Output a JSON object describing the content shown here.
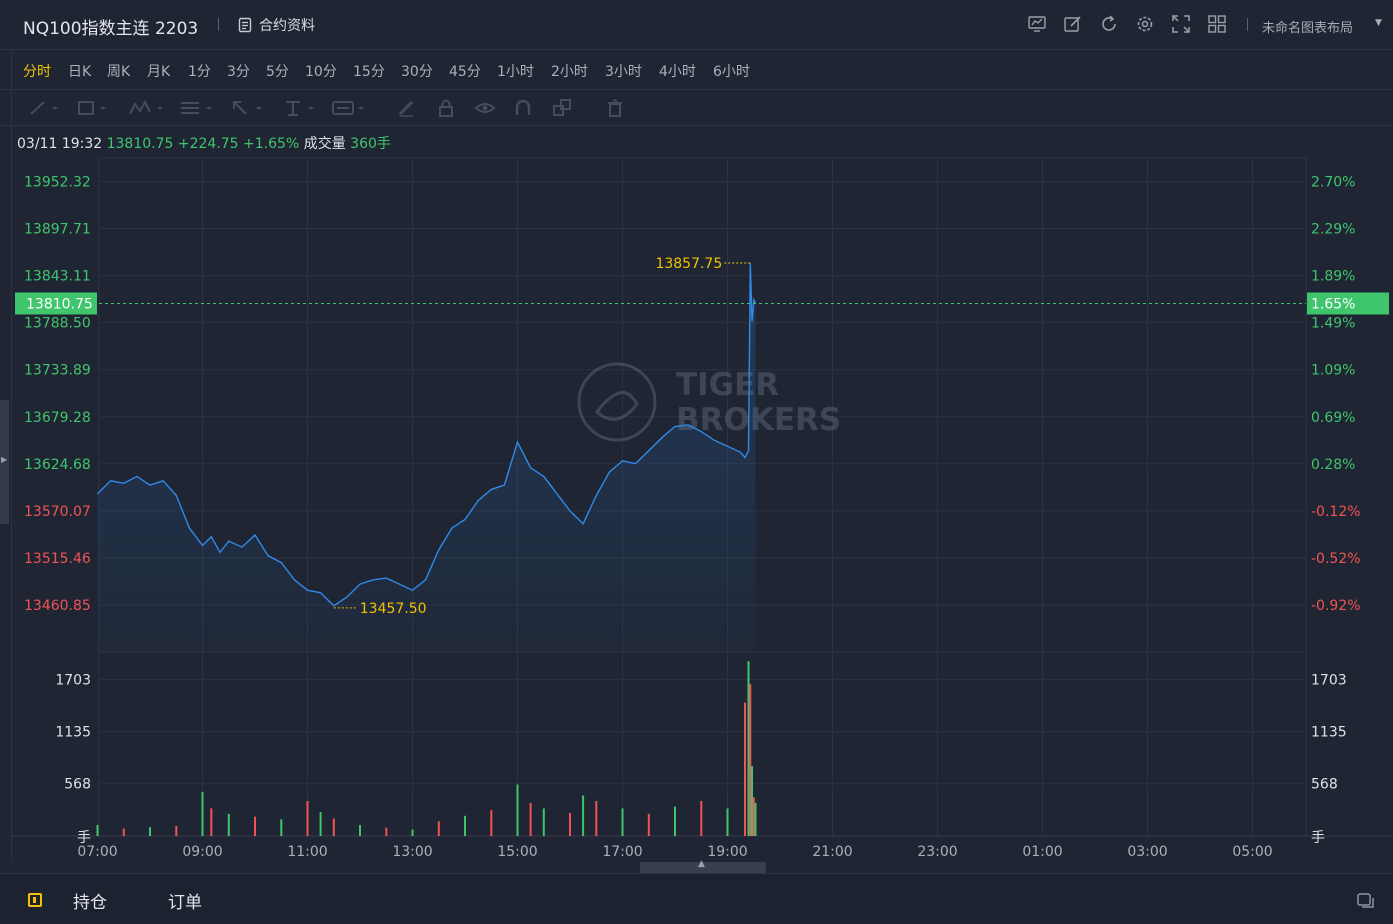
{
  "header": {
    "symbol_title": "NQ100指数主连 2203",
    "contract_info_label": "合约资料",
    "layout_name": "未命名图表布局",
    "tool_icons": [
      "indicator-icon",
      "draw-icon",
      "refresh-icon",
      "settings-icon",
      "fullscreen-icon",
      "layout-grid-icon"
    ]
  },
  "timeframes": [
    "分时",
    "日K",
    "周K",
    "月K",
    "1分",
    "3分",
    "5分",
    "10分",
    "15分",
    "30分",
    "45分",
    "1小时",
    "2小时",
    "3小时",
    "4小时",
    "6小时"
  ],
  "active_timeframe": "分时",
  "info": {
    "datetime": "03/11 19:32",
    "price": "13810.75",
    "change": "+224.75",
    "change_pct": "+1.65%",
    "volume_label": "成交量",
    "volume_value": "360手"
  },
  "watermark": [
    "TIGER",
    "BROKERS"
  ],
  "bottom_tabs": [
    "持仓",
    "订单"
  ],
  "colors": {
    "up": "#3fc56c",
    "down": "#f05454",
    "line": "#2f8ae8",
    "label": "#f2c200",
    "background": "#1f2533"
  },
  "chart_data": {
    "type": "line",
    "title": "",
    "x_ticks": [
      "07:00",
      "09:00",
      "11:00",
      "13:00",
      "15:00",
      "17:00",
      "19:00",
      "21:00",
      "23:00",
      "01:00",
      "03:00",
      "05:00"
    ],
    "price_ticks": [
      "13952.32",
      "13897.71",
      "13843.11",
      "13788.50",
      "13733.89",
      "13679.28",
      "13624.68",
      "13570.07",
      "13515.46",
      "13460.85"
    ],
    "pct_ticks": [
      "2.70%",
      "2.29%",
      "1.89%",
      "1.49%",
      "1.09%",
      "0.69%",
      "0.28%",
      "-0.12%",
      "-0.52%",
      "-0.92%"
    ],
    "ylim": [
      13406.25,
      13979.6
    ],
    "prev_close": 13586.0,
    "current_price": 13810.75,
    "current_price_label": "13810.75",
    "current_pct_label": "1.65%",
    "high": 13857.75,
    "high_label": "13857.75",
    "high_time": "19:26",
    "low": 13457.5,
    "low_label": "13457.50",
    "low_time": "11:30",
    "series": [
      {
        "x": [
          "07:00",
          "07:15",
          "07:30",
          "07:45",
          "08:00",
          "08:15",
          "08:30",
          "08:45",
          "09:00",
          "09:10",
          "09:20",
          "09:30",
          "09:45",
          "10:00",
          "10:15",
          "10:30",
          "10:45",
          "11:00",
          "11:15",
          "11:30",
          "11:45",
          "12:00",
          "12:15",
          "12:30",
          "12:45",
          "13:00",
          "13:15",
          "13:30",
          "13:45",
          "14:00",
          "14:15",
          "14:30",
          "14:45",
          "15:00",
          "15:15",
          "15:30",
          "15:45",
          "16:00",
          "16:15",
          "16:30",
          "16:45",
          "17:00",
          "17:15",
          "17:30",
          "17:45",
          "18:00",
          "18:15",
          "18:30",
          "18:45",
          "19:00",
          "19:15",
          "19:20",
          "19:24",
          "19:26",
          "19:28",
          "19:30",
          "19:32"
        ],
        "values": [
          13590,
          13605,
          13602,
          13610,
          13600,
          13605,
          13588,
          13550,
          13530,
          13540,
          13522,
          13535,
          13528,
          13542,
          13518,
          13510,
          13490,
          13478,
          13475,
          13460,
          13470,
          13485,
          13490,
          13492,
          13485,
          13478,
          13490,
          13525,
          13550,
          13560,
          13582,
          13595,
          13600,
          13650,
          13620,
          13610,
          13590,
          13570,
          13555,
          13588,
          13615,
          13628,
          13625,
          13640,
          13655,
          13668,
          13670,
          13662,
          13652,
          13645,
          13638,
          13632,
          13640,
          13857.75,
          13790,
          13815,
          13810.75
        ]
      }
    ],
    "volume": {
      "ticks": [
        "1703",
        "1135",
        "568"
      ],
      "unit_label": "手",
      "ylim": [
        0,
        2000
      ],
      "bars": [
        {
          "time": "07:00",
          "v": 120
        },
        {
          "time": "07:30",
          "v": 80
        },
        {
          "time": "08:00",
          "v": 95
        },
        {
          "time": "08:30",
          "v": 110
        },
        {
          "time": "09:00",
          "v": 480
        },
        {
          "time": "09:10",
          "v": 300
        },
        {
          "time": "09:30",
          "v": 240
        },
        {
          "time": "10:00",
          "v": 210
        },
        {
          "time": "10:30",
          "v": 180
        },
        {
          "time": "11:00",
          "v": 380
        },
        {
          "time": "11:15",
          "v": 260
        },
        {
          "time": "11:30",
          "v": 190
        },
        {
          "time": "12:00",
          "v": 120
        },
        {
          "time": "12:30",
          "v": 90
        },
        {
          "time": "13:00",
          "v": 70
        },
        {
          "time": "13:30",
          "v": 160
        },
        {
          "time": "14:00",
          "v": 220
        },
        {
          "time": "14:30",
          "v": 280
        },
        {
          "time": "15:00",
          "v": 560
        },
        {
          "time": "15:15",
          "v": 360
        },
        {
          "time": "15:30",
          "v": 300
        },
        {
          "time": "16:00",
          "v": 250
        },
        {
          "time": "16:15",
          "v": 440
        },
        {
          "time": "16:30",
          "v": 380
        },
        {
          "time": "17:00",
          "v": 300
        },
        {
          "time": "17:30",
          "v": 240
        },
        {
          "time": "18:00",
          "v": 320
        },
        {
          "time": "18:30",
          "v": 380
        },
        {
          "time": "19:00",
          "v": 300
        },
        {
          "time": "19:20",
          "v": 1450
        },
        {
          "time": "19:24",
          "v": 1900
        },
        {
          "time": "19:26",
          "v": 1650
        },
        {
          "time": "19:28",
          "v": 760
        },
        {
          "time": "19:30",
          "v": 420
        },
        {
          "time": "19:32",
          "v": 360
        }
      ]
    }
  }
}
